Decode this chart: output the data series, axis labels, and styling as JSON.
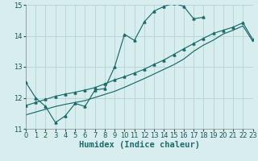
{
  "xlabel": "Humidex (Indice chaleur)",
  "bg_color": "#d8eeee",
  "grid_color": "#b8d8d8",
  "line_color": "#1a6b6b",
  "line1_x": [
    0,
    1,
    2,
    3,
    4,
    5,
    6,
    7,
    8,
    9,
    10,
    11,
    12,
    13,
    14,
    15,
    16,
    17,
    18
  ],
  "line1_y": [
    12.5,
    12.0,
    11.72,
    11.2,
    11.42,
    11.82,
    11.72,
    12.25,
    12.3,
    13.0,
    14.05,
    13.85,
    14.45,
    14.8,
    14.95,
    15.05,
    14.95,
    14.55,
    14.6
  ],
  "line2_x": [
    0,
    1,
    2,
    3,
    4,
    5,
    6,
    7,
    8,
    9,
    10,
    11,
    12,
    13,
    14,
    15,
    16,
    17,
    18,
    19,
    20,
    21,
    22,
    23
  ],
  "line2_y": [
    11.75,
    11.85,
    11.95,
    12.05,
    12.12,
    12.18,
    12.25,
    12.33,
    12.45,
    12.58,
    12.68,
    12.8,
    12.92,
    13.08,
    13.22,
    13.4,
    13.58,
    13.75,
    13.92,
    14.08,
    14.18,
    14.28,
    14.42,
    13.88
  ],
  "line3_x": [
    0,
    1,
    2,
    3,
    4,
    5,
    6,
    7,
    8,
    9,
    10,
    11,
    12,
    13,
    14,
    15,
    16,
    17,
    18,
    19,
    20,
    21,
    22,
    23
  ],
  "line3_y": [
    11.45,
    11.54,
    11.63,
    11.72,
    11.79,
    11.85,
    11.91,
    12.01,
    12.11,
    12.21,
    12.34,
    12.48,
    12.62,
    12.77,
    12.92,
    13.07,
    13.25,
    13.5,
    13.7,
    13.86,
    14.06,
    14.18,
    14.32,
    13.82
  ],
  "xlim": [
    0,
    23
  ],
  "ylim": [
    11,
    15
  ],
  "xticks": [
    0,
    1,
    2,
    3,
    4,
    5,
    6,
    7,
    8,
    9,
    10,
    11,
    12,
    13,
    14,
    15,
    16,
    17,
    18,
    19,
    20,
    21,
    22,
    23
  ],
  "yticks": [
    11,
    12,
    13,
    14,
    15
  ],
  "tick_fontsize": 6,
  "xlabel_fontsize": 7.5
}
